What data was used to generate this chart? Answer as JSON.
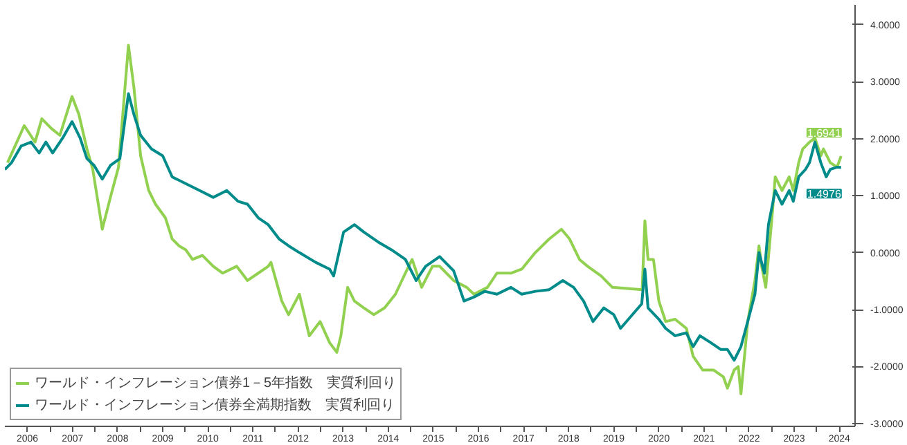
{
  "chart_data": {
    "type": "line",
    "legend": "bottom left",
    "grid": false,
    "line_style": "solid",
    "marker": "none",
    "xlim": [
      2006,
      2024.85
    ],
    "xticks": [
      {
        "value": 2006.5,
        "label": "2006"
      },
      {
        "value": 2007,
        "label": null
      },
      {
        "value": 2007.5,
        "label": "2007"
      },
      {
        "value": 2008,
        "label": null
      },
      {
        "value": 2008.5,
        "label": "2008"
      },
      {
        "value": 2009,
        "label": null
      },
      {
        "value": 2009.5,
        "label": "2009"
      },
      {
        "value": 2010,
        "label": null
      },
      {
        "value": 2010.5,
        "label": "2010"
      },
      {
        "value": 2011,
        "label": null
      },
      {
        "value": 2011.5,
        "label": "2011"
      },
      {
        "value": 2012,
        "label": null
      },
      {
        "value": 2012.5,
        "label": "2012"
      },
      {
        "value": 2013,
        "label": null
      },
      {
        "value": 2013.5,
        "label": "2013"
      },
      {
        "value": 2014,
        "label": null
      },
      {
        "value": 2014.5,
        "label": "2014"
      },
      {
        "value": 2015,
        "label": null
      },
      {
        "value": 2015.5,
        "label": "2015"
      },
      {
        "value": 2016,
        "label": null
      },
      {
        "value": 2016.5,
        "label": "2016"
      },
      {
        "value": 2017,
        "label": null
      },
      {
        "value": 2017.5,
        "label": "2017"
      },
      {
        "value": 2018,
        "label": null
      },
      {
        "value": 2018.5,
        "label": "2018"
      },
      {
        "value": 2019,
        "label": null
      },
      {
        "value": 2019.5,
        "label": "2019"
      },
      {
        "value": 2020,
        "label": null
      },
      {
        "value": 2020.5,
        "label": "2020"
      },
      {
        "value": 2021,
        "label": null
      },
      {
        "value": 2021.5,
        "label": "2021"
      },
      {
        "value": 2022,
        "label": null
      },
      {
        "value": 2022.5,
        "label": "2022"
      },
      {
        "value": 2023,
        "label": null
      },
      {
        "value": 2023.5,
        "label": "2023"
      },
      {
        "value": 2024,
        "label": null
      },
      {
        "value": 2024.5,
        "label": "2024"
      }
    ],
    "ylim": [
      -3.05,
      4.35
    ],
    "yticks": [
      {
        "value": 4,
        "label": "4.0000"
      },
      {
        "value": 3,
        "label": "3.0000"
      },
      {
        "value": 2,
        "label": "2.0000"
      },
      {
        "value": 1,
        "label": "1.0000"
      },
      {
        "value": 0,
        "label": "0.0000"
      },
      {
        "value": -1,
        "label": "-1.0000"
      },
      {
        "value": -2,
        "label": "-2.0000"
      },
      {
        "value": -3,
        "label": "-3.0000"
      }
    ],
    "annotations": [
      {
        "text": "1.6941",
        "x": 2024.54,
        "y": 1.6941
      },
      {
        "text": "1.4976",
        "x": 2024.54,
        "y": 1.4976
      }
    ],
    "series": [
      {
        "name": "ワールド・インフレーション債券1－5年指数　実質利回り",
        "color": "#92d050",
        "x": [
          2006.06,
          2006.43,
          2006.67,
          2006.82,
          2007.03,
          2007.22,
          2007.49,
          2007.64,
          2007.82,
          2007.95,
          2008.16,
          2008.34,
          2008.52,
          2008.74,
          2008.86,
          2009.01,
          2009.19,
          2009.34,
          2009.56,
          2009.71,
          2009.86,
          2010.01,
          2010.16,
          2010.38,
          2010.62,
          2010.83,
          2011.14,
          2011.38,
          2011.62,
          2011.84,
          2011.9,
          2012.14,
          2012.29,
          2012.53,
          2012.75,
          2012.99,
          2013.2,
          2013.36,
          2013.45,
          2013.6,
          2013.75,
          2013.96,
          2014.18,
          2014.42,
          2014.66,
          2014.88,
          2015.03,
          2015.24,
          2015.48,
          2015.64,
          2015.95,
          2016.24,
          2016.4,
          2016.7,
          2016.91,
          2017.22,
          2017.46,
          2017.76,
          2018.07,
          2018.34,
          2018.52,
          2018.74,
          2018.92,
          2019.22,
          2019.47,
          2020.13,
          2020.19,
          2020.26,
          2020.38,
          2020.5,
          2020.65,
          2020.86,
          2021.11,
          2021.26,
          2021.47,
          2021.71,
          2021.93,
          2022.02,
          2022.17,
          2022.26,
          2022.32,
          2022.47,
          2022.63,
          2022.72,
          2022.78,
          2022.87,
          2023.02,
          2023.08,
          2023.23,
          2023.39,
          2023.48,
          2023.6,
          2023.69,
          2023.84,
          2023.96,
          2024.09,
          2024.15,
          2024.3,
          2024.45,
          2024.54
        ],
        "values": [
          1.58,
          2.23,
          1.94,
          2.35,
          2.18,
          2.06,
          2.74,
          2.43,
          1.82,
          1.46,
          0.41,
          0.97,
          1.5,
          3.64,
          2.91,
          1.7,
          1.09,
          0.85,
          0.61,
          0.24,
          0.12,
          0.05,
          -0.12,
          -0.05,
          -0.24,
          -0.36,
          -0.24,
          -0.49,
          -0.36,
          -0.24,
          -0.17,
          -0.85,
          -1.09,
          -0.73,
          -1.46,
          -1.21,
          -1.58,
          -1.75,
          -1.46,
          -0.61,
          -0.85,
          -0.97,
          -1.09,
          -0.97,
          -0.73,
          -0.36,
          -0.12,
          -0.61,
          -0.24,
          -0.24,
          -0.49,
          -0.61,
          -0.73,
          -0.61,
          -0.36,
          -0.36,
          -0.29,
          0.0,
          0.24,
          0.41,
          0.24,
          -0.12,
          -0.24,
          -0.41,
          -0.61,
          -0.65,
          0.56,
          -0.12,
          -0.12,
          -0.85,
          -1.21,
          -1.17,
          -1.33,
          -1.82,
          -2.06,
          -2.06,
          -2.18,
          -2.38,
          -2.06,
          -2.0,
          -2.48,
          -1.21,
          -0.49,
          0.12,
          -0.24,
          -0.61,
          0.73,
          1.33,
          1.09,
          1.33,
          1.09,
          1.58,
          1.82,
          1.94,
          2.01,
          1.7,
          1.82,
          1.58,
          1.5,
          1.6941
        ]
      },
      {
        "name": "ワールド・インフレーション債券全満期指数　実質利回り",
        "color": "#008b8b",
        "x": [
          2006.0,
          2006.15,
          2006.36,
          2006.58,
          2006.76,
          2006.91,
          2007.06,
          2007.28,
          2007.49,
          2007.67,
          2007.82,
          2007.98,
          2008.16,
          2008.34,
          2008.55,
          2008.74,
          2008.86,
          2009.01,
          2009.25,
          2009.5,
          2009.71,
          2010.01,
          2010.32,
          2010.62,
          2010.92,
          2011.17,
          2011.38,
          2011.62,
          2011.84,
          2012.08,
          2012.29,
          2012.53,
          2012.89,
          2013.2,
          2013.29,
          2013.51,
          2013.75,
          2013.96,
          2014.27,
          2014.57,
          2014.88,
          2015.12,
          2015.33,
          2015.64,
          2015.95,
          2016.18,
          2016.4,
          2016.64,
          2016.91,
          2017.22,
          2017.46,
          2017.76,
          2018.07,
          2018.37,
          2018.61,
          2018.83,
          2019.04,
          2019.28,
          2019.5,
          2019.65,
          2020.12,
          2020.19,
          2020.26,
          2020.5,
          2020.65,
          2020.86,
          2021.11,
          2021.26,
          2021.41,
          2021.65,
          2021.87,
          2022.02,
          2022.17,
          2022.32,
          2022.47,
          2022.63,
          2022.72,
          2022.84,
          2022.93,
          2023.08,
          2023.23,
          2023.39,
          2023.48,
          2023.6,
          2023.75,
          2023.84,
          2023.96,
          2024.09,
          2024.21,
          2024.3,
          2024.45,
          2024.54
        ],
        "values": [
          1.46,
          1.58,
          1.87,
          1.94,
          1.75,
          1.94,
          1.75,
          2.01,
          2.3,
          2.01,
          1.65,
          1.53,
          1.29,
          1.53,
          1.65,
          2.79,
          2.43,
          2.06,
          1.82,
          1.7,
          1.33,
          1.21,
          1.09,
          0.97,
          1.09,
          0.9,
          0.85,
          0.61,
          0.49,
          0.24,
          0.12,
          0.0,
          -0.17,
          -0.29,
          -0.41,
          0.36,
          0.49,
          0.36,
          0.19,
          0.05,
          -0.12,
          -0.49,
          -0.24,
          -0.07,
          -0.32,
          -0.85,
          -0.78,
          -0.68,
          -0.73,
          -0.61,
          -0.73,
          -0.68,
          -0.65,
          -0.49,
          -0.61,
          -0.85,
          -1.21,
          -0.97,
          -1.09,
          -1.33,
          -0.9,
          -0.29,
          -0.97,
          -1.17,
          -1.33,
          -1.46,
          -1.41,
          -1.65,
          -1.46,
          -1.58,
          -1.7,
          -1.7,
          -1.89,
          -1.65,
          -1.21,
          -0.73,
          0.0,
          -0.36,
          0.49,
          1.09,
          0.85,
          1.09,
          0.9,
          1.33,
          1.46,
          1.58,
          1.94,
          1.58,
          1.33,
          1.46,
          1.5,
          1.4976
        ]
      }
    ]
  }
}
